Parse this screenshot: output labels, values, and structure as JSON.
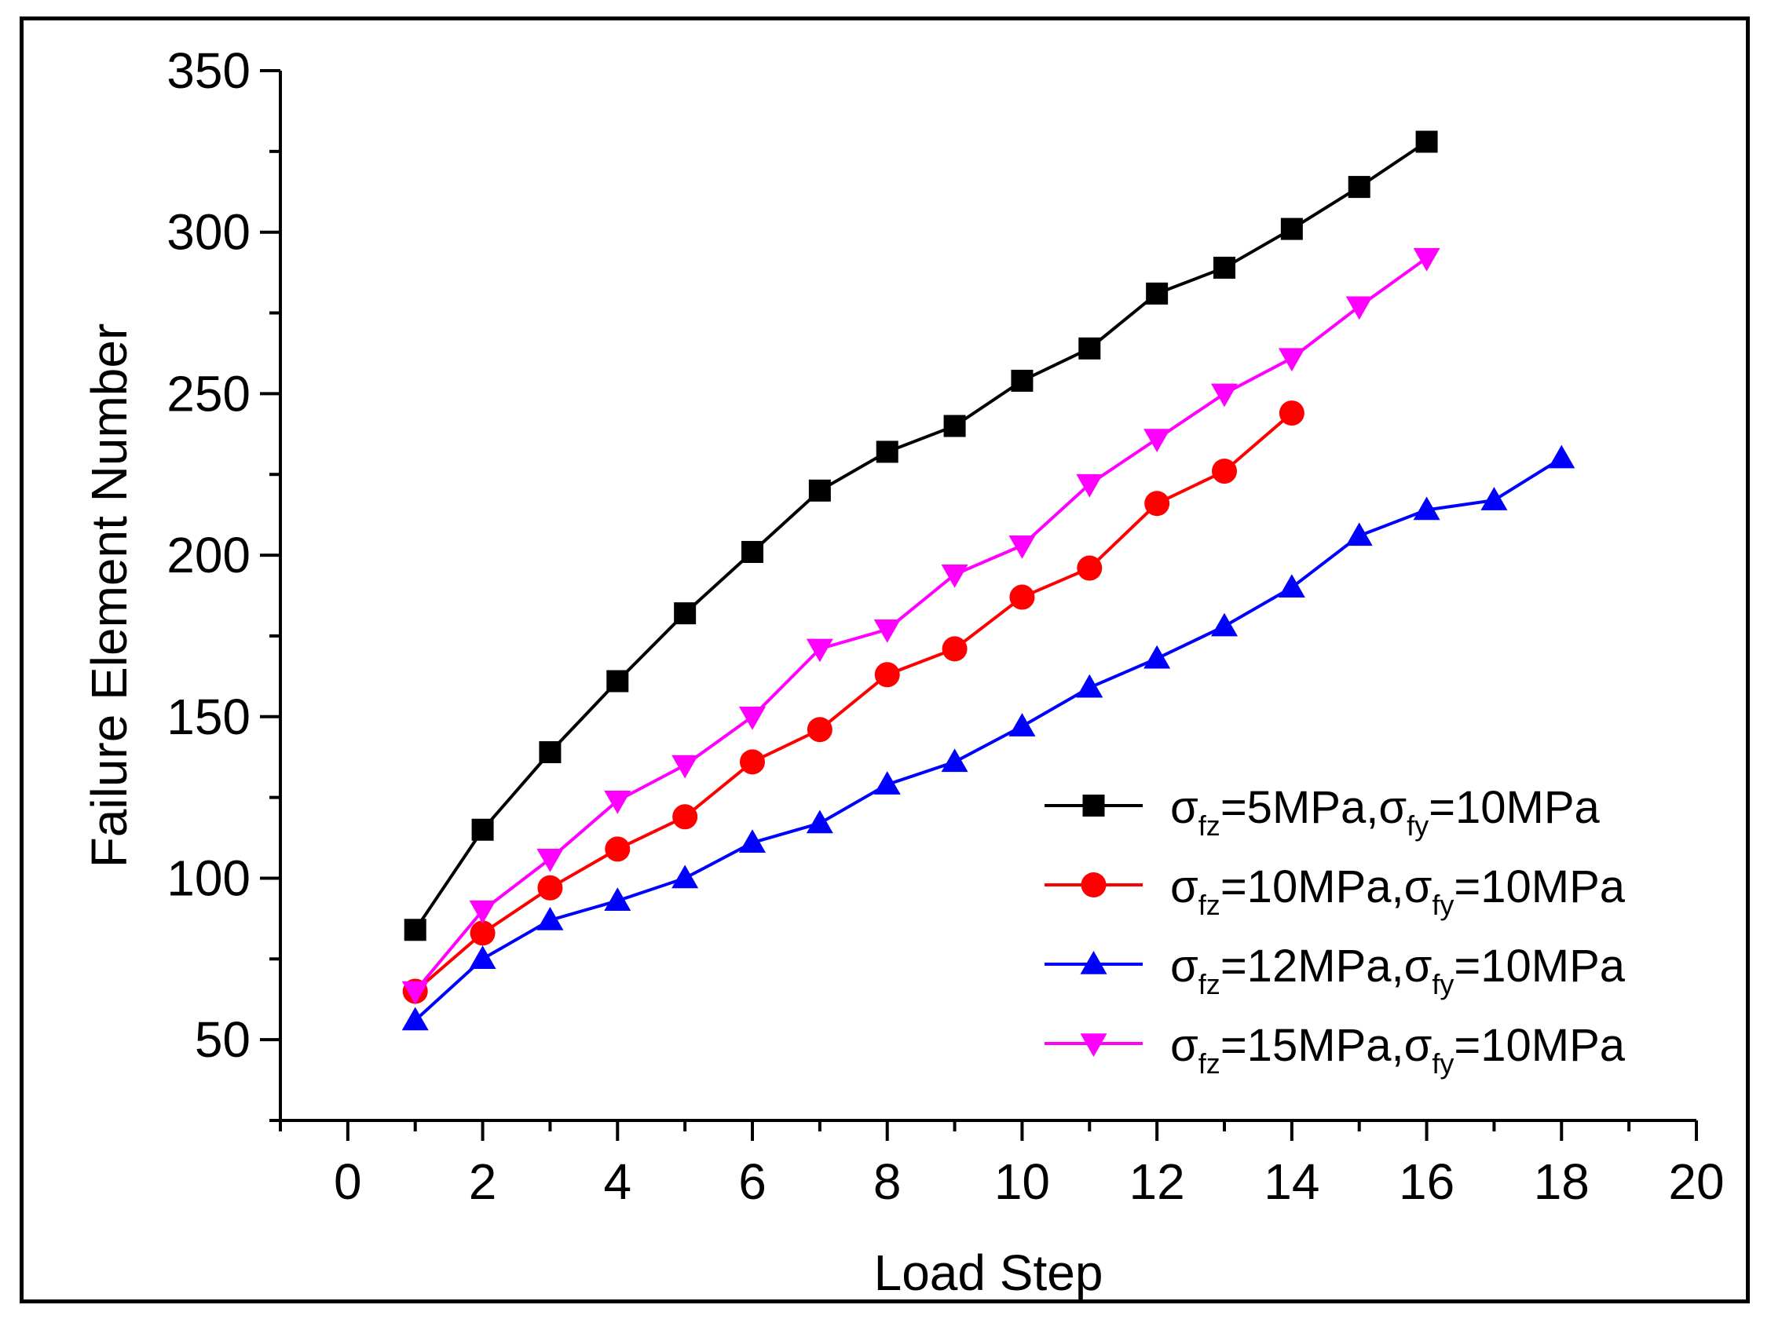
{
  "chart_data": {
    "type": "line",
    "title": "",
    "xlabel": "Load Step",
    "ylabel": "Failure Element Number",
    "xlim": [
      -1,
      20
    ],
    "ylim": [
      25,
      350
    ],
    "xticks": [
      0,
      2,
      4,
      6,
      8,
      10,
      12,
      14,
      16,
      18,
      20
    ],
    "yticks": [
      50,
      100,
      150,
      200,
      250,
      300,
      350
    ],
    "grid": false,
    "legend_position": "bottom-right",
    "series": [
      {
        "name": "σfz=5MPa,σfy=10MPa",
        "legend_parts": [
          {
            "sym": "σ",
            "sub": "fz",
            "text": "=5MPa,"
          },
          {
            "sym": "σ",
            "sub": "fy",
            "text": "=10MPa"
          }
        ],
        "color": "#000000",
        "marker": "square",
        "x": [
          1,
          2,
          3,
          4,
          5,
          6,
          7,
          8,
          9,
          10,
          11,
          12,
          13,
          14,
          15,
          16
        ],
        "y": [
          84,
          115,
          139,
          161,
          182,
          201,
          220,
          232,
          240,
          254,
          264,
          281,
          289,
          301,
          314,
          328
        ]
      },
      {
        "name": "σfz=10MPa,σfy=10MPa",
        "legend_parts": [
          {
            "sym": "σ",
            "sub": "fz",
            "text": "=10MPa,"
          },
          {
            "sym": "σ",
            "sub": "fy",
            "text": "=10MPa"
          }
        ],
        "color": "#ff0000",
        "marker": "circle",
        "x": [
          1,
          2,
          3,
          4,
          5,
          6,
          7,
          8,
          9,
          10,
          11,
          12,
          13,
          14
        ],
        "y": [
          65,
          83,
          97,
          109,
          119,
          136,
          146,
          163,
          171,
          187,
          196,
          216,
          226,
          244
        ]
      },
      {
        "name": "σfz=12MPa,σfy=10MPa",
        "legend_parts": [
          {
            "sym": "σ",
            "sub": "fz",
            "text": "=12MPa,"
          },
          {
            "sym": "σ",
            "sub": "fy",
            "text": "=10MPa"
          }
        ],
        "color": "#0000ff",
        "marker": "triangle-up",
        "x": [
          1,
          2,
          3,
          4,
          5,
          6,
          7,
          8,
          9,
          10,
          11,
          12,
          13,
          14,
          15,
          16,
          17,
          18
        ],
        "y": [
          56,
          75,
          87,
          93,
          100,
          111,
          117,
          129,
          136,
          147,
          159,
          168,
          178,
          190,
          206,
          214,
          217,
          230
        ]
      },
      {
        "name": "σfz=15MPa,σfy=10MPa",
        "legend_parts": [
          {
            "sym": "σ",
            "sub": "fz",
            "text": "=15MPa,"
          },
          {
            "sym": "σ",
            "sub": "fy",
            "text": "=10MPa"
          }
        ],
        "color": "#ff00ff",
        "marker": "triangle-down",
        "x": [
          1,
          2,
          3,
          4,
          5,
          6,
          7,
          8,
          9,
          10,
          11,
          12,
          13,
          14,
          15,
          16
        ],
        "y": [
          65,
          90,
          106,
          124,
          135,
          150,
          171,
          177,
          194,
          203,
          222,
          236,
          250,
          261,
          277,
          292
        ]
      }
    ]
  }
}
